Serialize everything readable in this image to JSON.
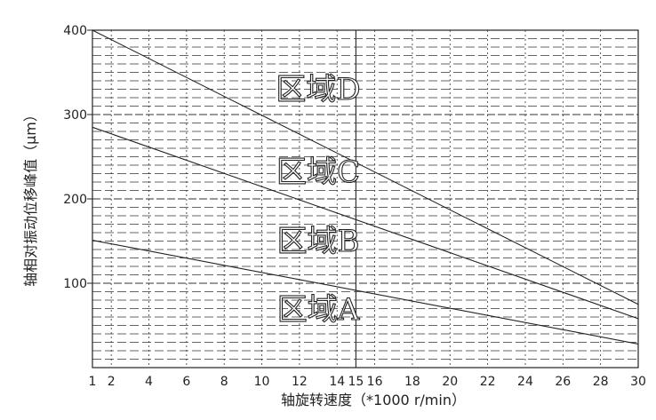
{
  "chart_data": {
    "type": "line",
    "title": "",
    "xlabel": "轴旋转速度（*1000 r/min）",
    "ylabel": "轴相对振动位移峰值（μm）",
    "xlim": [
      1,
      30
    ],
    "ylim": [
      0,
      400
    ],
    "x_ticks": [
      1,
      2,
      4,
      6,
      8,
      10,
      12,
      14,
      15,
      16,
      18,
      20,
      22,
      24,
      26,
      28,
      30
    ],
    "x_tick_labels": [
      "1",
      "2",
      "4",
      "6",
      "8",
      "10",
      "12",
      "14",
      "15",
      "16",
      "18",
      "20",
      "22",
      "24",
      "26",
      "28",
      "30"
    ],
    "y_ticks": [
      100,
      200,
      300,
      400
    ],
    "y_tick_labels": [
      "100",
      "200",
      "300",
      "400"
    ],
    "grid": true,
    "series": [
      {
        "x": [
          1,
          30
        ],
        "y": [
          400,
          75
        ]
      },
      {
        "x": [
          1,
          30
        ],
        "y": [
          285,
          58
        ]
      },
      {
        "x": [
          1,
          30
        ],
        "y": [
          151,
          28
        ]
      }
    ],
    "annotations": [
      {
        "text": "区域D",
        "x": 13,
        "y": 318
      },
      {
        "text": "区域C",
        "x": 13,
        "y": 220
      },
      {
        "text": "区域B",
        "x": 13,
        "y": 138
      },
      {
        "text": "区域A",
        "x": 13,
        "y": 57
      }
    ]
  }
}
